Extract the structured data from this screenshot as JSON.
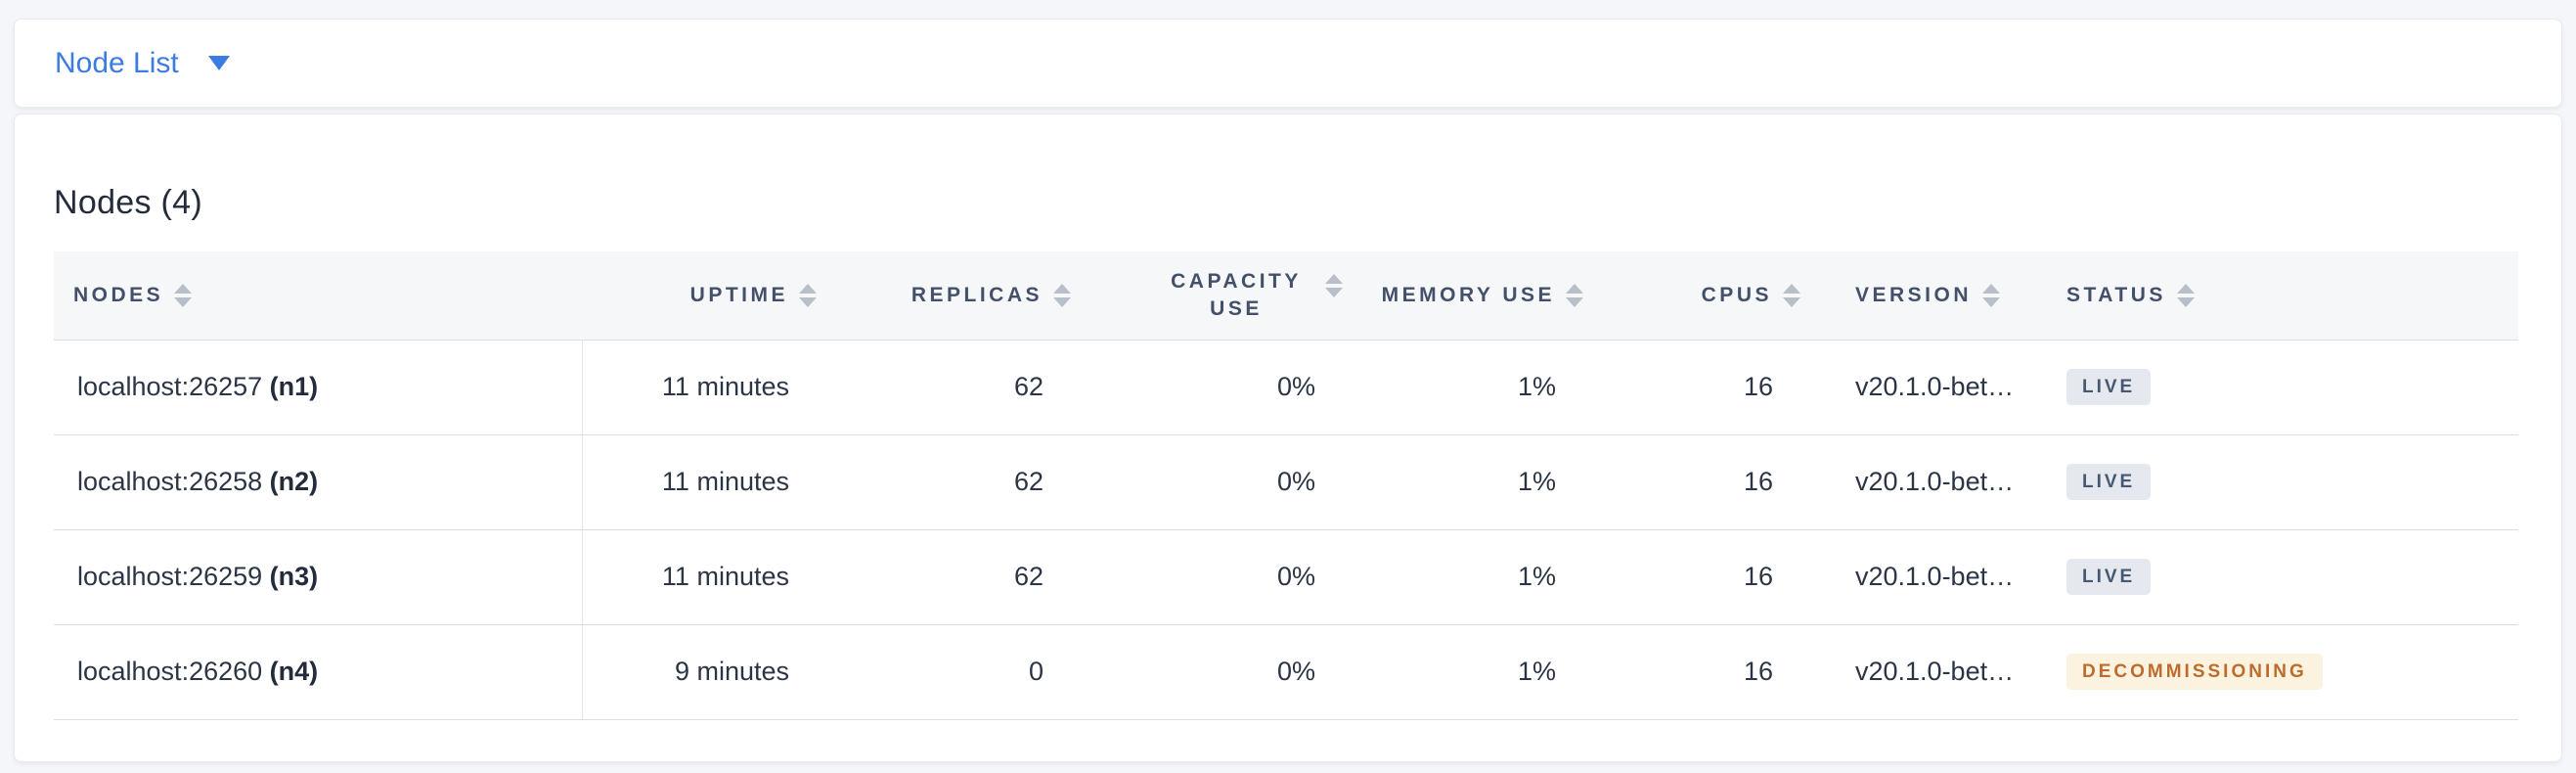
{
  "toolbar": {
    "view_selector_label": "Node List"
  },
  "main": {
    "title": "Nodes (4)",
    "table": {
      "columns": [
        {
          "label": "NODES"
        },
        {
          "label": "UPTIME"
        },
        {
          "label": "REPLICAS"
        },
        {
          "label": "CAPACITY USE"
        },
        {
          "label": "MEMORY USE"
        },
        {
          "label": "CPUS"
        },
        {
          "label": "VERSION"
        },
        {
          "label": "STATUS"
        }
      ],
      "rows": [
        {
          "address": "localhost:26257",
          "node_id": "(n1)",
          "uptime": "11 minutes",
          "replicas": "62",
          "capacity_use": "0%",
          "memory_use": "1%",
          "cpus": "16",
          "version": "v20.1.0-bet…",
          "status": "LIVE",
          "status_kind": "live"
        },
        {
          "address": "localhost:26258",
          "node_id": "(n2)",
          "uptime": "11 minutes",
          "replicas": "62",
          "capacity_use": "0%",
          "memory_use": "1%",
          "cpus": "16",
          "version": "v20.1.0-bet…",
          "status": "LIVE",
          "status_kind": "live"
        },
        {
          "address": "localhost:26259",
          "node_id": "(n3)",
          "uptime": "11 minutes",
          "replicas": "62",
          "capacity_use": "0%",
          "memory_use": "1%",
          "cpus": "16",
          "version": "v20.1.0-bet…",
          "status": "LIVE",
          "status_kind": "live"
        },
        {
          "address": "localhost:26260",
          "node_id": "(n4)",
          "uptime": "9 minutes",
          "replicas": "0",
          "capacity_use": "0%",
          "memory_use": "1%",
          "cpus": "16",
          "version": "v20.1.0-bet…",
          "status": "DECOMMISSIONING",
          "status_kind": "decommissioning"
        }
      ]
    }
  },
  "colors": {
    "accent_blue": "#3b7ce2",
    "status": {
      "live": {
        "bg": "#e5e8ee",
        "text": "#475872"
      },
      "decommissioning": {
        "bg": "#fcf2e0",
        "text": "#bd6c2d"
      }
    }
  }
}
